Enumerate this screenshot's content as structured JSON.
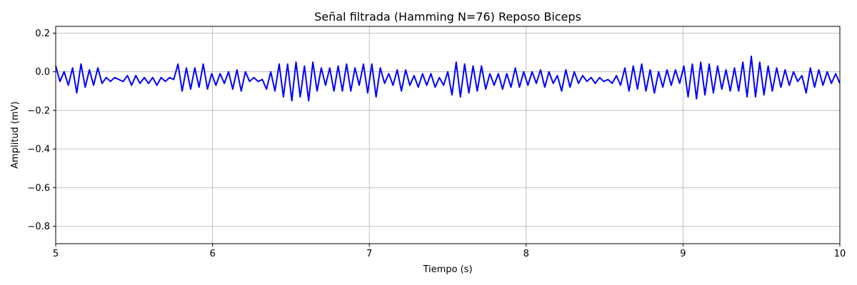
{
  "chart_data": {
    "type": "line",
    "title": "Señal filtrada (Hamming N=76) Reposo Biceps",
    "xlabel": "Tiempo (s)",
    "ylabel": "Amplitud (mV)",
    "xlim": [
      5,
      10
    ],
    "ylim": [
      -0.89,
      0.235
    ],
    "x_ticks": [
      5,
      6,
      7,
      8,
      9,
      10
    ],
    "y_ticks": [
      -0.8,
      -0.6,
      -0.4,
      -0.2,
      0.0,
      0.2
    ],
    "x_tick_labels": [
      "5",
      "6",
      "7",
      "8",
      "9",
      "10"
    ],
    "y_tick_labels": [
      "−0.8",
      "−0.6",
      "−0.4",
      "−0.2",
      "0.0",
      "0.2"
    ],
    "grid": true,
    "series": [
      {
        "color": "#0000ff",
        "x_start": 5,
        "x_end": 10,
        "values": [
          0.03,
          -0.05,
          0.0,
          -0.07,
          0.02,
          -0.11,
          0.04,
          -0.08,
          0.01,
          -0.07,
          0.02,
          -0.06,
          -0.03,
          -0.05,
          -0.03,
          -0.04,
          -0.05,
          -0.02,
          -0.07,
          -0.02,
          -0.06,
          -0.03,
          -0.06,
          -0.03,
          -0.07,
          -0.03,
          -0.05,
          -0.03,
          -0.04,
          0.04,
          -0.1,
          0.02,
          -0.09,
          0.02,
          -0.08,
          0.04,
          -0.09,
          -0.01,
          -0.07,
          -0.01,
          -0.06,
          0.0,
          -0.09,
          0.01,
          -0.1,
          0.0,
          -0.05,
          -0.03,
          -0.05,
          -0.04,
          -0.09,
          0.0,
          -0.1,
          0.04,
          -0.13,
          0.04,
          -0.15,
          0.05,
          -0.13,
          0.03,
          -0.15,
          0.05,
          -0.1,
          0.02,
          -0.07,
          0.02,
          -0.1,
          0.03,
          -0.1,
          0.04,
          -0.1,
          0.02,
          -0.07,
          0.04,
          -0.11,
          0.04,
          -0.13,
          0.02,
          -0.06,
          -0.01,
          -0.07,
          0.01,
          -0.1,
          0.01,
          -0.07,
          -0.02,
          -0.08,
          -0.01,
          -0.07,
          -0.01,
          -0.08,
          -0.03,
          -0.07,
          0.0,
          -0.12,
          0.05,
          -0.13,
          0.04,
          -0.11,
          0.03,
          -0.1,
          0.03,
          -0.09,
          -0.01,
          -0.07,
          -0.01,
          -0.09,
          -0.01,
          -0.08,
          0.02,
          -0.08,
          0.0,
          -0.07,
          0.0,
          -0.06,
          0.01,
          -0.08,
          0.0,
          -0.06,
          -0.02,
          -0.1,
          0.01,
          -0.08,
          0.0,
          -0.06,
          -0.02,
          -0.05,
          -0.03,
          -0.06,
          -0.03,
          -0.05,
          -0.04,
          -0.06,
          -0.02,
          -0.07,
          0.02,
          -0.1,
          0.03,
          -0.09,
          0.04,
          -0.1,
          0.01,
          -0.11,
          0.0,
          -0.08,
          0.01,
          -0.07,
          0.01,
          -0.06,
          0.03,
          -0.13,
          0.04,
          -0.14,
          0.05,
          -0.12,
          0.04,
          -0.11,
          0.03,
          -0.09,
          0.01,
          -0.1,
          0.02,
          -0.1,
          0.05,
          -0.13,
          0.08,
          -0.13,
          0.05,
          -0.12,
          0.03,
          -0.1,
          0.02,
          -0.08,
          0.01,
          -0.07,
          0.0,
          -0.05,
          -0.02,
          -0.11,
          0.02,
          -0.08,
          0.01,
          -0.07,
          0.0,
          -0.06,
          -0.01,
          -0.06
        ]
      }
    ]
  }
}
